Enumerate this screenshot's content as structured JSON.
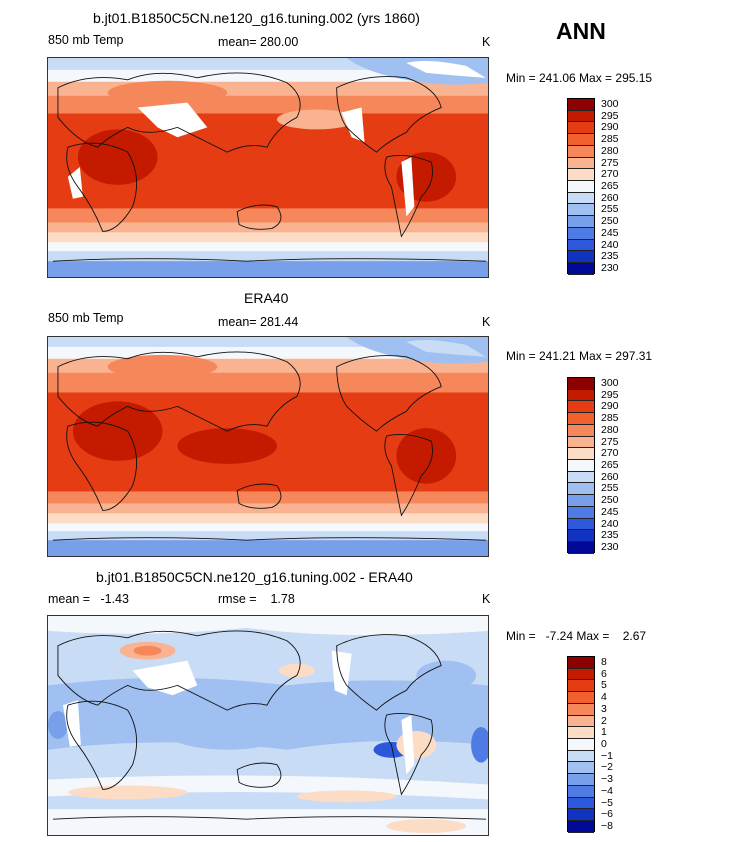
{
  "season": "ANN",
  "panels": [
    {
      "id": "model",
      "title": "b.jt01.B1850C5CN.ne120_g16.tuning.002 (yrs 1860)",
      "left_label": "850 mb Temp",
      "center_label": "mean= 280.00",
      "right_label": "K",
      "minmax": "Min = 241.06 Max = 295.15",
      "colorbar_levels": [
        "300",
        "295",
        "290",
        "285",
        "280",
        "275",
        "270",
        "265",
        "260",
        "255",
        "250",
        "245",
        "240",
        "235",
        "230"
      ],
      "colorbar_colors": [
        "#8c0000",
        "#c41a00",
        "#e63c14",
        "#f2602e",
        "#f6875a",
        "#fab390",
        "#fddcc6",
        "#f4f8fc",
        "#c8dcf6",
        "#a0c0f2",
        "#78a0ea",
        "#4f7ce4",
        "#2d58dc",
        "#1033c0",
        "#000a96"
      ]
    },
    {
      "id": "obs",
      "title": "ERA40",
      "left_label": "850 mb Temp",
      "center_label": "mean= 281.44",
      "right_label": "K",
      "minmax": "Min = 241.21 Max = 297.31",
      "colorbar_levels": [
        "300",
        "295",
        "290",
        "285",
        "280",
        "275",
        "270",
        "265",
        "260",
        "255",
        "250",
        "245",
        "240",
        "235",
        "230"
      ],
      "colorbar_colors": [
        "#8c0000",
        "#c41a00",
        "#e63c14",
        "#f2602e",
        "#f6875a",
        "#fab390",
        "#fddcc6",
        "#f4f8fc",
        "#c8dcf6",
        "#a0c0f2",
        "#78a0ea",
        "#4f7ce4",
        "#2d58dc",
        "#1033c0",
        "#000a96"
      ]
    },
    {
      "id": "diff",
      "title": "b.jt01.B1850C5CN.ne120_g16.tuning.002 - ERA40",
      "left_label": "mean =   -1.43",
      "center_label": "rmse =    1.78",
      "right_label": "K",
      "minmax": "Min =   -7.24 Max =    2.67",
      "colorbar_levels": [
        "8",
        "6",
        "5",
        "4",
        "3",
        "2",
        "1",
        "0",
        "−1",
        "−2",
        "−3",
        "−4",
        "−5",
        "−6",
        "−8"
      ],
      "colorbar_colors": [
        "#8c0000",
        "#c41a00",
        "#e63c14",
        "#f2602e",
        "#f6875a",
        "#fab390",
        "#fddcc6",
        "#f4f8fc",
        "#c8dcf6",
        "#a0c0f2",
        "#78a0ea",
        "#4f7ce4",
        "#2d58dc",
        "#1033c0",
        "#000a96"
      ]
    }
  ]
}
